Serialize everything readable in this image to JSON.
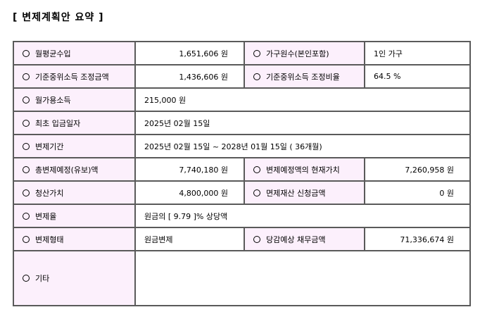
{
  "title": "[ 변제계획안 요약 ]",
  "rows": [
    {
      "l1": "월평균수입",
      "v1": "1,651,606 원",
      "l2": "가구원수(본인포함)",
      "v2": "1인 가구"
    },
    {
      "l1": "기준중위소득 조정금액",
      "v1": "1,436,606 원",
      "l2": "기준중위소득 조정비율",
      "v2": "64.5 %"
    },
    {
      "l1": "월가용소득",
      "v1": "215,000 원"
    },
    {
      "l1": "최초 입금일자",
      "v1": "2025년 02월 15일"
    },
    {
      "l1": "변제기간",
      "v1": "2025년 02월 15일 ~ 2028년 01월 15일 ( 36개월)"
    },
    {
      "l1": "총변제예정(유보)액",
      "v1": "7,740,180 원",
      "l2": "변제예정액의 현재가치",
      "v2": "7,260,958 원"
    },
    {
      "l1": "청산가치",
      "v1": "4,800,000 원",
      "l2": "면제재산 신청금액",
      "v2": "0 원"
    },
    {
      "l1": "변제율",
      "v1": "원금의 [ 9.79 ]% 상당액"
    },
    {
      "l1": "변제형태",
      "v1": "원금변제",
      "l2": "당감예상 채무금액",
      "v2": "71,336,674 원"
    },
    {
      "l1": "기타",
      "v1": ""
    }
  ]
}
